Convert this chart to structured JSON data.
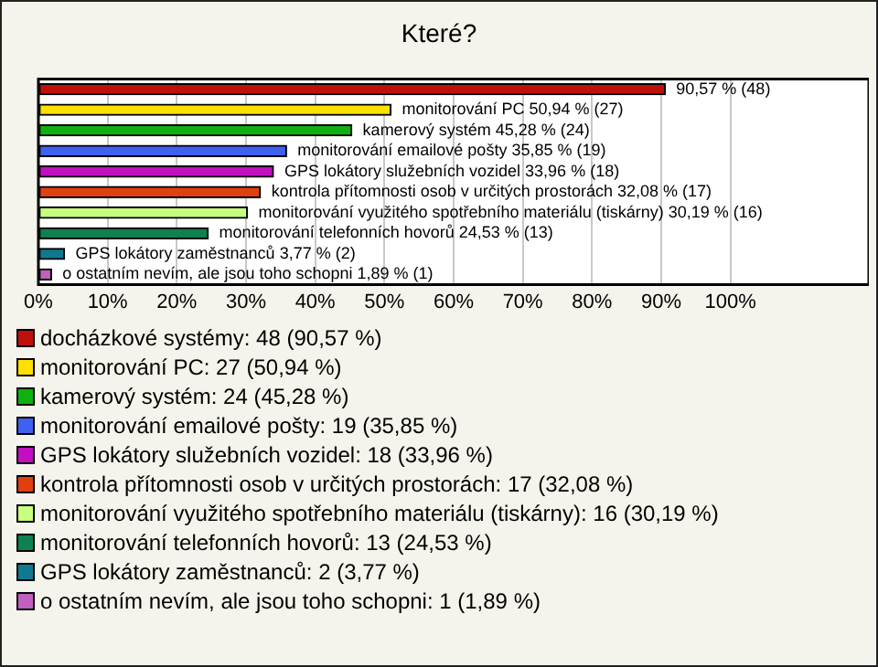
{
  "chart_data": {
    "type": "bar",
    "title": "Které?",
    "orientation": "horizontal",
    "stacked": true,
    "categories": [
      null,
      null,
      null,
      null,
      null,
      null,
      null,
      null,
      null,
      null
    ],
    "xlim": [
      0,
      120
    ],
    "xticks": [
      {
        "value": 0,
        "label": "0%"
      },
      {
        "value": 10,
        "label": "10%"
      },
      {
        "value": 20,
        "label": "20%"
      },
      {
        "value": 30,
        "label": "30%"
      },
      {
        "value": 40,
        "label": "40%"
      },
      {
        "value": 50,
        "label": "50%"
      },
      {
        "value": 60,
        "label": "60%"
      },
      {
        "value": 70,
        "label": "70%"
      },
      {
        "value": 80,
        "label": "80%"
      },
      {
        "value": 90,
        "label": "90%"
      },
      {
        "value": 100,
        "label": "100%"
      }
    ],
    "grid": "x",
    "legend": "bottom",
    "series": [
      {
        "name": "docházkové systémy: 48 (90,57 %)",
        "color": "#c0100c",
        "values": [
          90.57,
          null,
          null,
          null,
          null,
          null,
          null,
          null,
          null,
          null
        ],
        "value_labels": [
          "90,57 % (48)",
          null,
          null,
          null,
          null,
          null,
          null,
          null,
          null,
          null
        ]
      },
      {
        "name": "monitorování PC: 27 (50,94 %)",
        "color": "#ffe000",
        "values": [
          null,
          50.94,
          null,
          null,
          null,
          null,
          null,
          null,
          null,
          null
        ],
        "value_labels": [
          null,
          "monitorování PC 50,94 % (27)",
          null,
          null,
          null,
          null,
          null,
          null,
          null,
          null
        ]
      },
      {
        "name": "kamerový systém: 24 (45,28 %)",
        "color": "#10b010",
        "values": [
          null,
          null,
          45.28,
          null,
          null,
          null,
          null,
          null,
          null,
          null
        ],
        "value_labels": [
          null,
          null,
          "kamerový systém 45,28 % (24)",
          null,
          null,
          null,
          null,
          null,
          null,
          null
        ]
      },
      {
        "name": "monitorování emailové pošty: 19 (35,85 %)",
        "color": "#4060f0",
        "values": [
          null,
          null,
          null,
          35.85,
          null,
          null,
          null,
          null,
          null,
          null
        ],
        "value_labels": [
          null,
          null,
          null,
          "monitorování emailové pošty 35,85 % (19)",
          null,
          null,
          null,
          null,
          null,
          null
        ]
      },
      {
        "name": "GPS lokátory služebních vozidel: 18 (33,96 %)",
        "color": "#c010c0",
        "values": [
          null,
          null,
          null,
          null,
          33.96,
          null,
          null,
          null,
          null,
          null
        ],
        "value_labels": [
          null,
          null,
          null,
          null,
          "GPS lokátory služebních vozidel 33,96 % (18)",
          null,
          null,
          null,
          null,
          null
        ]
      },
      {
        "name": "kontrola přítomnosti osob v určitých prostorách: 17 (32,08 %)",
        "color": "#e04010",
        "values": [
          null,
          null,
          null,
          null,
          null,
          32.08,
          null,
          null,
          null,
          null
        ],
        "value_labels": [
          null,
          null,
          null,
          null,
          null,
          "kontrola přítomnosti osob v určitých prostorách 32,08 % (17)",
          null,
          null,
          null,
          null
        ]
      },
      {
        "name": "monitorování využitého spotřebního materiálu (tiskárny): 16 (30,19 %)",
        "color": "#c8ff80",
        "values": [
          null,
          null,
          null,
          null,
          null,
          null,
          30.19,
          null,
          null,
          null
        ],
        "value_labels": [
          null,
          null,
          null,
          null,
          null,
          null,
          "monitorování využitého spotřebního materiálu (tiskárny) 30,19 % (16)",
          null,
          null,
          null
        ]
      },
      {
        "name": "monitorování telefonních hovorů: 13 (24,53 %)",
        "color": "#108050",
        "values": [
          null,
          null,
          null,
          null,
          null,
          null,
          null,
          24.53,
          null,
          null
        ],
        "value_labels": [
          null,
          null,
          null,
          null,
          null,
          null,
          null,
          "monitorování telefonních hovorů 24,53 % (13)",
          null,
          null
        ]
      },
      {
        "name": "GPS lokátory zaměstnanců: 2 (3,77 %)",
        "color": "#107890",
        "values": [
          null,
          null,
          null,
          null,
          null,
          null,
          null,
          null,
          3.77,
          null
        ],
        "value_labels": [
          null,
          null,
          null,
          null,
          null,
          null,
          null,
          null,
          "GPS lokátory zaměstnanců 3,77 % (2)",
          null
        ]
      },
      {
        "name": "o ostatním nevím, ale jsou toho schopni: 1 (1,89 %)",
        "color": "#c060c0",
        "values": [
          null,
          null,
          null,
          null,
          null,
          null,
          null,
          null,
          null,
          1.89
        ],
        "value_labels": [
          null,
          null,
          null,
          null,
          null,
          null,
          null,
          null,
          null,
          "o ostatním nevím, ale jsou toho schopni 1,89 % (1)"
        ]
      }
    ]
  }
}
